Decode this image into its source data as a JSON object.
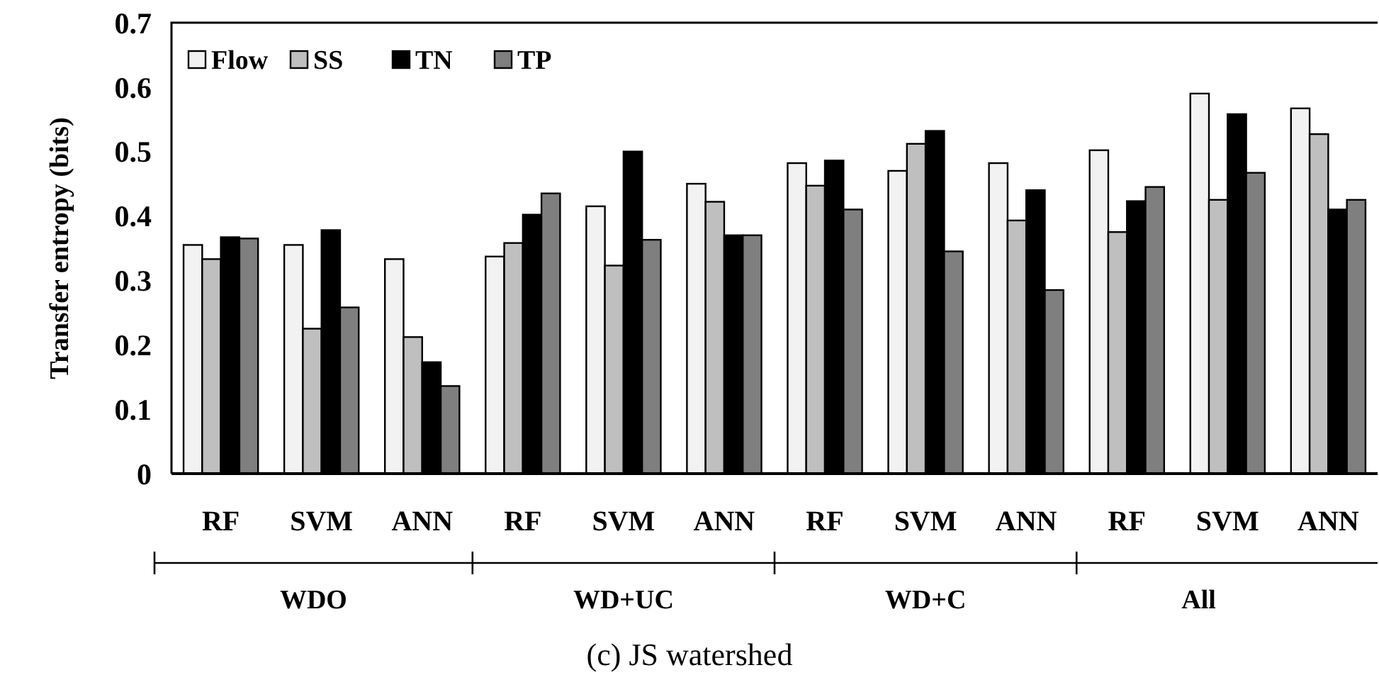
{
  "chart_data": {
    "type": "bar",
    "title": "(c) JS watershed",
    "ylabel": "Transfer entropy (bits)",
    "categories": [
      "RF",
      "SVM",
      "ANN",
      "RF",
      "SVM",
      "ANN",
      "RF",
      "SVM",
      "ANN",
      "RF",
      "SVM",
      "ANN"
    ],
    "annotations": [
      "WDO",
      "WD+UC",
      "WD+C",
      "All"
    ],
    "series": [
      {
        "name": "Flow",
        "color": "#f2f2f2",
        "values": [
          0.355,
          0.355,
          0.333,
          0.337,
          0.415,
          0.45,
          0.482,
          0.47,
          0.482,
          0.502,
          0.59,
          0.567
        ]
      },
      {
        "name": "SS",
        "color": "#bfbfbf",
        "values": [
          0.333,
          0.225,
          0.212,
          0.358,
          0.323,
          0.422,
          0.447,
          0.512,
          0.393,
          0.375,
          0.425,
          0.527
        ]
      },
      {
        "name": "TN",
        "color": "#000000",
        "values": [
          0.367,
          0.378,
          0.173,
          0.402,
          0.5,
          0.37,
          0.486,
          0.532,
          0.44,
          0.423,
          0.558,
          0.41
        ]
      },
      {
        "name": "TP",
        "color": "#7f7f7f",
        "values": [
          0.365,
          0.258,
          0.136,
          0.435,
          0.363,
          0.37,
          0.41,
          0.345,
          0.285,
          0.445,
          0.467,
          0.425
        ]
      }
    ],
    "ylim": [
      0,
      0.7
    ],
    "yticks": [
      0,
      0.1,
      0.2,
      0.3,
      0.4,
      0.5,
      0.6,
      0.7
    ],
    "grid": false,
    "legend": "top left"
  }
}
